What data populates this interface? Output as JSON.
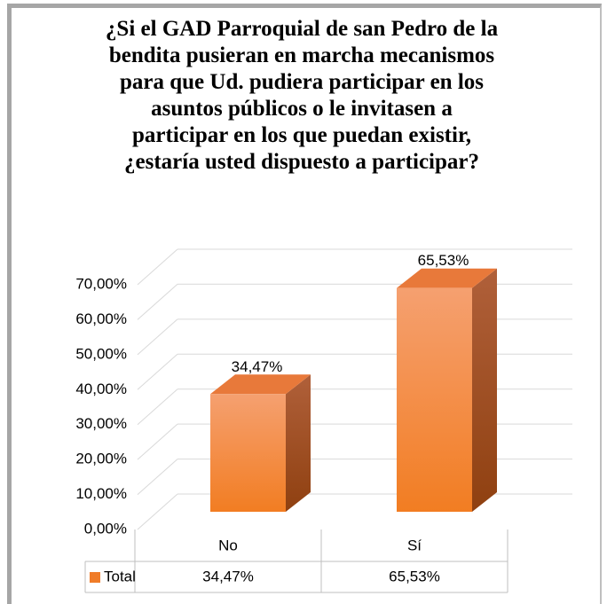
{
  "chart_data": {
    "type": "bar3d",
    "title": "¿Si el GAD Parroquial de san Pedro de la\nbendita pusieran en marcha mecanismos\npara que Ud. pudiera participar en los\nasuntos públicos o le invitasen a\nparticipar en los que puedan existir,\n¿estaría usted dispuesto a participar?",
    "categories": [
      "No",
      "Sí"
    ],
    "series": [
      {
        "name": "Total",
        "color": "#f07c28",
        "values": [
          34.47,
          65.53
        ],
        "value_labels": [
          "34,47%",
          "65,53%"
        ]
      }
    ],
    "ylim": [
      0,
      70
    ],
    "yticks": [
      {
        "value": 0,
        "label": "0,00%"
      },
      {
        "value": 10,
        "label": "10,00%"
      },
      {
        "value": 20,
        "label": "20,00%"
      },
      {
        "value": 30,
        "label": "30,00%"
      },
      {
        "value": 40,
        "label": "40,00%"
      },
      {
        "value": 50,
        "label": "50,00%"
      },
      {
        "value": 60,
        "label": "60,00%"
      },
      {
        "value": 70,
        "label": "70,00%"
      }
    ],
    "grid": true,
    "data_table": true
  }
}
